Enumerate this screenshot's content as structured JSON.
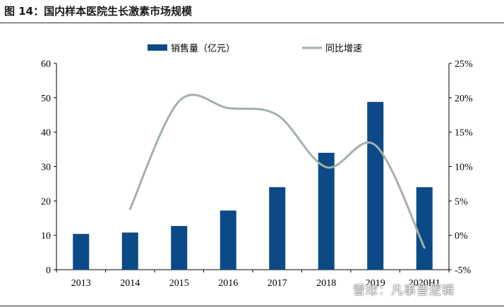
{
  "header": {
    "title": "图 14：国内样本医院生长激素市场规模"
  },
  "chart_data": {
    "type": "bar",
    "title": "国内样本医院生长激素市场规模",
    "categories": [
      "2013",
      "2014",
      "2015",
      "2016",
      "2017",
      "2018",
      "2019",
      "2020H1"
    ],
    "series": [
      {
        "name": "销售量（亿元）",
        "type": "bar",
        "axis": "left",
        "color": "#0b4a86",
        "values": [
          10.4,
          10.8,
          12.7,
          17.2,
          24.0,
          34.0,
          48.8,
          24.0
        ]
      },
      {
        "name": "同比增速",
        "type": "line",
        "axis": "right",
        "color": "#a3b2a6",
        "values": [
          null,
          3.8,
          19.5,
          18.5,
          17.5,
          9.9,
          13.1,
          -1.8
        ]
      }
    ],
    "left_axis": {
      "min": 0,
      "max": 60,
      "step": 10,
      "ticks": [
        "0",
        "10",
        "20",
        "30",
        "40",
        "50",
        "60"
      ]
    },
    "right_axis": {
      "min": -5,
      "max": 25,
      "step": 5,
      "ticks": [
        "-5%",
        "0%",
        "5%",
        "10%",
        "15%",
        "20%",
        "25%"
      ]
    },
    "legend": {
      "placement": "top-center",
      "items": [
        "销售量（亿元）",
        "同比增速"
      ]
    },
    "grid": false
  },
  "watermark": {
    "text": "雪球：凡事皆逻辑"
  }
}
